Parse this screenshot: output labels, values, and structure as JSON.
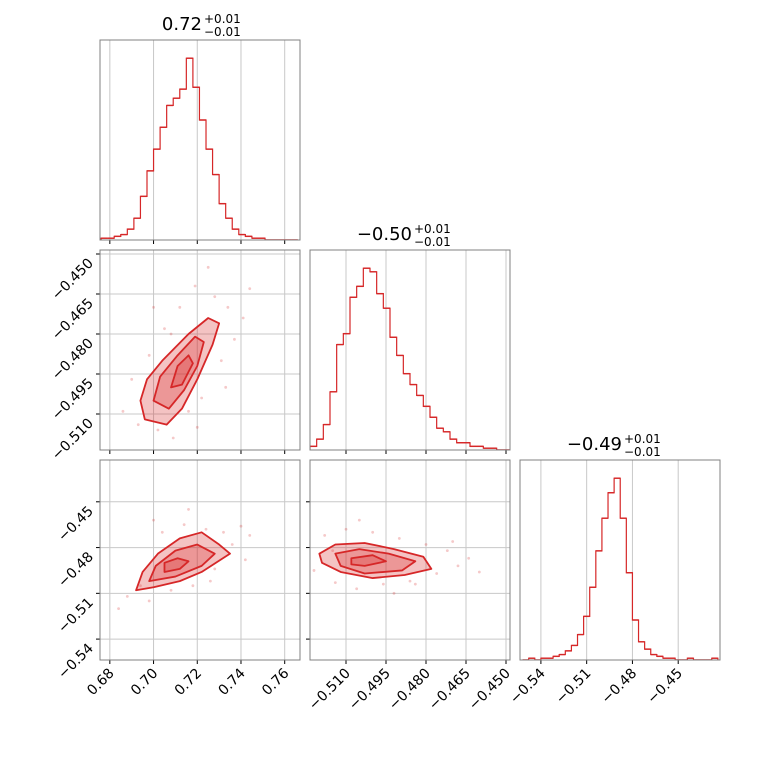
{
  "chart_data": [
    {
      "type": "histogram",
      "title": "0.72",
      "title_upper": "+0.01",
      "title_lower": "−0.01",
      "color": "#d62728",
      "grid": true,
      "bins": [
        0.676,
        0.679,
        0.682,
        0.685,
        0.688,
        0.691,
        0.694,
        0.697,
        0.7,
        0.703,
        0.706,
        0.709,
        0.712,
        0.715,
        0.718,
        0.721,
        0.724,
        0.727,
        0.73,
        0.733,
        0.736,
        0.739,
        0.742,
        0.745,
        0.748,
        0.751,
        0.754,
        0.757,
        0.76,
        0.763,
        0.766
      ],
      "values": [
        1,
        1,
        2,
        3,
        6,
        12,
        24,
        38,
        50,
        62,
        74,
        78,
        83,
        100,
        84,
        66,
        50,
        36,
        20,
        12,
        6,
        3,
        2,
        1,
        1,
        0,
        0,
        0,
        0,
        0
      ],
      "xlim": [
        0.6755,
        0.767
      ],
      "ylim": [
        0,
        110
      ],
      "xticks": [
        0.68,
        0.7,
        0.72,
        0.74,
        0.76
      ],
      "xlabels": false
    },
    {
      "type": "density",
      "color": "#d62728",
      "grid": true,
      "x": [
        0.686,
        0.69,
        0.693,
        0.698,
        0.702,
        0.705,
        0.709,
        0.712,
        0.716,
        0.719,
        0.722,
        0.725,
        0.728,
        0.731,
        0.734,
        0.737,
        0.741,
        0.744,
        0.7,
        0.72,
        0.733,
        0.708
      ],
      "y": [
        -0.509,
        -0.497,
        -0.514,
        -0.488,
        -0.516,
        -0.478,
        -0.519,
        -0.47,
        -0.509,
        -0.462,
        -0.504,
        -0.455,
        -0.466,
        -0.49,
        -0.47,
        -0.482,
        -0.474,
        -0.463,
        -0.47,
        -0.515,
        -0.5,
        -0.48
      ],
      "contours": [
        {
          "x": [
            0.694,
            0.696,
            0.706,
            0.713,
            0.72,
            0.727,
            0.73,
            0.725,
            0.716,
            0.704,
            0.697
          ],
          "y": [
            -0.505,
            -0.512,
            -0.514,
            -0.508,
            -0.497,
            -0.484,
            -0.476,
            -0.474,
            -0.48,
            -0.49,
            -0.497
          ]
        },
        {
          "x": [
            0.7,
            0.707,
            0.714,
            0.72,
            0.723,
            0.719,
            0.711,
            0.703
          ],
          "y": [
            -0.505,
            -0.508,
            -0.501,
            -0.492,
            -0.483,
            -0.481,
            -0.488,
            -0.496
          ]
        },
        {
          "x": [
            0.708,
            0.713,
            0.718,
            0.716,
            0.711
          ],
          "y": [
            -0.5,
            -0.499,
            -0.491,
            -0.488,
            -0.492
          ]
        }
      ],
      "xlim": [
        0.6755,
        0.767
      ],
      "ylim": [
        -0.5235,
        -0.4485
      ],
      "xticks": [
        0.68,
        0.7,
        0.72,
        0.74,
        0.76
      ],
      "xlabels": false,
      "yticks": [
        {
          "value": -0.51,
          "label": "−0.510"
        },
        {
          "value": -0.495,
          "label": "−0.495"
        },
        {
          "value": -0.48,
          "label": "−0.480"
        },
        {
          "value": -0.465,
          "label": "−0.465"
        },
        {
          "value": -0.45,
          "label": "−0.450"
        }
      ],
      "ylabels": true
    },
    {
      "type": "histogram",
      "title": "−0.50",
      "title_upper": "+0.01",
      "title_lower": "−0.01",
      "color": "#d62728",
      "grid": true,
      "bins": [
        -0.5235,
        -0.521,
        -0.5185,
        -0.516,
        -0.5135,
        -0.511,
        -0.5085,
        -0.506,
        -0.5035,
        -0.501,
        -0.4985,
        -0.496,
        -0.4935,
        -0.491,
        -0.4885,
        -0.486,
        -0.4835,
        -0.481,
        -0.4785,
        -0.476,
        -0.4735,
        -0.471,
        -0.4685,
        -0.466,
        -0.4635,
        -0.461,
        -0.4585,
        -0.456,
        -0.4535,
        -0.451,
        -0.4485
      ],
      "values": [
        2,
        6,
        14,
        32,
        58,
        64,
        84,
        90,
        100,
        98,
        86,
        78,
        62,
        52,
        42,
        36,
        30,
        24,
        18,
        12,
        10,
        6,
        4,
        4,
        2,
        2,
        1,
        1,
        0,
        0
      ],
      "xlim": [
        -0.5235,
        -0.4485
      ],
      "ylim": [
        0,
        110
      ],
      "xticks": [
        -0.51,
        -0.495,
        -0.48,
        -0.465,
        -0.45
      ],
      "xlabels": false
    },
    {
      "type": "density",
      "color": "#d62728",
      "grid": true,
      "x": [
        0.684,
        0.688,
        0.694,
        0.698,
        0.704,
        0.708,
        0.714,
        0.718,
        0.724,
        0.728,
        0.732,
        0.736,
        0.74,
        0.744,
        0.7,
        0.726,
        0.742,
        0.716
      ],
      "y": [
        -0.52,
        -0.512,
        -0.505,
        -0.515,
        -0.47,
        -0.508,
        -0.465,
        -0.505,
        -0.468,
        -0.494,
        -0.47,
        -0.478,
        -0.466,
        -0.472,
        -0.462,
        -0.502,
        -0.488,
        -0.455
      ],
      "contours": [
        {
          "x": [
            0.692,
            0.7,
            0.712,
            0.722,
            0.735,
            0.73,
            0.722,
            0.712,
            0.702,
            0.695
          ],
          "y": [
            -0.508,
            -0.506,
            -0.502,
            -0.496,
            -0.484,
            -0.478,
            -0.47,
            -0.474,
            -0.484,
            -0.496
          ]
        },
        {
          "x": [
            0.698,
            0.71,
            0.722,
            0.728,
            0.72,
            0.71,
            0.701
          ],
          "y": [
            -0.502,
            -0.499,
            -0.492,
            -0.484,
            -0.478,
            -0.482,
            -0.492
          ]
        },
        {
          "x": [
            0.705,
            0.712,
            0.716,
            0.711,
            0.705
          ],
          "y": [
            -0.496,
            -0.494,
            -0.489,
            -0.487,
            -0.49
          ]
        }
      ],
      "xlim": [
        0.6755,
        0.767
      ],
      "ylim": [
        -0.5537,
        -0.4226
      ],
      "xticks": [
        {
          "value": 0.68,
          "label": "0.68"
        },
        {
          "value": 0.7,
          "label": "0.70"
        },
        {
          "value": 0.72,
          "label": "0.72"
        },
        {
          "value": 0.74,
          "label": "0.74"
        },
        {
          "value": 0.76,
          "label": "0.76"
        }
      ],
      "xlabels": true,
      "yticks": [
        {
          "value": -0.54,
          "label": "−0.54"
        },
        {
          "value": -0.51,
          "label": "−0.51"
        },
        {
          "value": -0.48,
          "label": "−0.48"
        },
        {
          "value": -0.45,
          "label": "−0.45"
        }
      ],
      "ylabels": true
    },
    {
      "type": "density",
      "color": "#d62728",
      "grid": true,
      "x": [
        -0.522,
        -0.518,
        -0.514,
        -0.51,
        -0.506,
        -0.5,
        -0.496,
        -0.49,
        -0.486,
        -0.48,
        -0.476,
        -0.472,
        -0.468,
        -0.464,
        -0.46,
        -0.505,
        -0.492,
        -0.515,
        -0.47,
        -0.484
      ],
      "y": [
        -0.495,
        -0.472,
        -0.503,
        -0.468,
        -0.507,
        -0.47,
        -0.504,
        -0.474,
        -0.502,
        -0.478,
        -0.497,
        -0.482,
        -0.492,
        -0.487,
        -0.496,
        -0.462,
        -0.51,
        -0.482,
        -0.476,
        -0.504
      ],
      "contours": [
        {
          "x": [
            -0.52,
            -0.514,
            -0.503,
            -0.492,
            -0.481,
            -0.478,
            -0.488,
            -0.5,
            -0.512,
            -0.519
          ],
          "y": [
            -0.484,
            -0.478,
            -0.477,
            -0.481,
            -0.486,
            -0.494,
            -0.498,
            -0.5,
            -0.496,
            -0.49
          ]
        },
        {
          "x": [
            -0.514,
            -0.505,
            -0.494,
            -0.484,
            -0.489,
            -0.503,
            -0.512
          ],
          "y": [
            -0.484,
            -0.481,
            -0.484,
            -0.489,
            -0.495,
            -0.497,
            -0.492
          ]
        },
        {
          "x": [
            -0.508,
            -0.5,
            -0.495,
            -0.503,
            -0.508
          ],
          "y": [
            -0.487,
            -0.485,
            -0.489,
            -0.492,
            -0.491
          ]
        }
      ],
      "xlim": [
        -0.5235,
        -0.4485
      ],
      "ylim": [
        -0.5537,
        -0.4226
      ],
      "xticks": [
        {
          "value": -0.51,
          "label": "−0.510"
        },
        {
          "value": -0.495,
          "label": "−0.495"
        },
        {
          "value": -0.48,
          "label": "−0.480"
        },
        {
          "value": -0.465,
          "label": "−0.465"
        },
        {
          "value": -0.45,
          "label": "−0.450"
        }
      ],
      "xlabels": true,
      "yticks": [
        -0.54,
        -0.51,
        -0.48,
        -0.45
      ],
      "ylabels": false
    },
    {
      "type": "histogram",
      "title": "−0.49",
      "title_upper": "+0.01",
      "title_lower": "−0.01",
      "color": "#d62728",
      "grid": true,
      "bins": [
        -0.552,
        -0.548,
        -0.544,
        -0.54,
        -0.536,
        -0.532,
        -0.528,
        -0.524,
        -0.52,
        -0.516,
        -0.512,
        -0.508,
        -0.504,
        -0.5,
        -0.496,
        -0.492,
        -0.488,
        -0.484,
        -0.48,
        -0.476,
        -0.472,
        -0.468,
        -0.464,
        -0.46,
        -0.456,
        -0.452,
        -0.448,
        -0.444,
        -0.44,
        -0.436,
        -0.432,
        -0.428,
        -0.424
      ],
      "values": [
        0,
        1,
        0,
        1,
        1,
        2,
        3,
        5,
        8,
        14,
        24,
        40,
        60,
        78,
        92,
        100,
        78,
        48,
        22,
        10,
        6,
        3,
        2,
        1,
        1,
        0,
        0,
        1,
        0,
        0,
        0,
        1
      ],
      "xlim": [
        -0.5537,
        -0.4226
      ],
      "ylim": [
        0,
        110
      ],
      "xticks": [
        {
          "value": -0.54,
          "label": "−0.54"
        },
        {
          "value": -0.51,
          "label": "−0.51"
        },
        {
          "value": -0.48,
          "label": "−0.48"
        },
        {
          "value": -0.45,
          "label": "−0.45"
        }
      ],
      "xlabels": true
    }
  ]
}
